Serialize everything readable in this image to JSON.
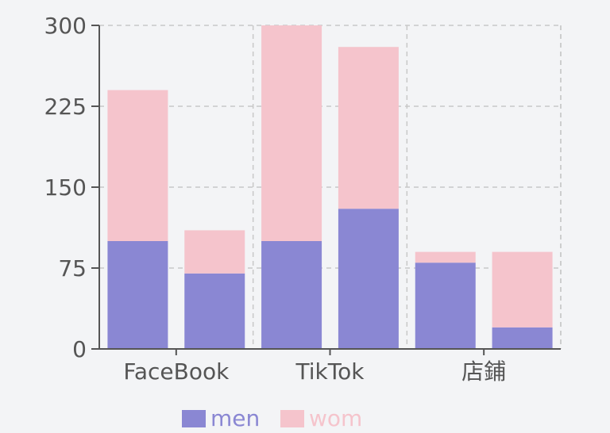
{
  "chart_data": {
    "type": "bar",
    "stacked": true,
    "categories": [
      "",
      "FaceBook",
      "",
      "TikTok",
      "",
      "店鋪"
    ],
    "series": [
      {
        "name": "men",
        "values": [
          100,
          70,
          100,
          130,
          80,
          20
        ],
        "color": "#8a87d3"
      },
      {
        "name": "wom",
        "values": [
          140,
          40,
          200,
          150,
          10,
          70
        ],
        "color": "#f5c4cc"
      }
    ],
    "ylim": [
      0,
      300
    ],
    "yticks": [
      0,
      75,
      150,
      225,
      300
    ],
    "grid": true,
    "legend": "bottom"
  }
}
